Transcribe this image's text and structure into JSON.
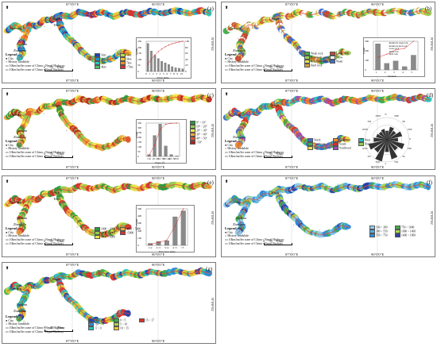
{
  "coords": {
    "lon1": "87°0'0\"E",
    "lon2": "90°0'0\"E",
    "lat": "N\"0'0°82"
  },
  "cities": [
    "Lhasa",
    "Shigatse",
    "Gyirong",
    "Zhangmu",
    "Tingri",
    "Nyalam",
    "Tibet",
    "Lhatse",
    "Nyemo",
    "Quxu",
    "Chuhur"
  ],
  "legend": {
    "title": "Legend",
    "city": "City",
    "history": "History landslide",
    "hwy": "10km buffer zone of China - Nepal Highway",
    "rwy": "10km buffer zone of China - Nepal Railway"
  },
  "scale": {
    "zero": "0",
    "mid": "35",
    "end": "70km"
  },
  "panels": [
    {
      "label": "(a)",
      "classes": [
        "1km",
        "2km",
        "3km",
        "4km",
        "5km",
        "6km",
        "7km",
        ">7km"
      ],
      "colors": [
        "#1f3fb5",
        "#1e8fd0",
        "#28c4c0",
        "#4cc46b",
        "#b7d94c",
        "#f0c730",
        "#f08a2a",
        "#d92f2f"
      ]
    },
    {
      "label": "(b)",
      "classes": [
        "Weak rock",
        "Relatively weak rock",
        "Relatively hard rock",
        "Hard rock",
        "Loose rock",
        "Snow",
        "Water"
      ],
      "colors": [
        "#3fae4a",
        "#9ad05a",
        "#e6e24e",
        "#d8a53a",
        "#c64a2f",
        "#ffffff",
        "#3a6fd0"
      ]
    },
    {
      "label": "(c)",
      "classes": [
        "0° ~ 10°",
        "10° ~ 20°",
        "20° ~ 30°",
        "30° ~ 40°",
        "40° ~ 50°",
        ">50°"
      ],
      "colors": [
        "#2b9a3f",
        "#8fcf4f",
        "#f0e64a",
        "#f0a53a",
        "#e0582b",
        "#b32020"
      ]
    },
    {
      "label": "(d)",
      "classes": [
        "North",
        "Northeast",
        "East",
        "Southeast",
        "South",
        "Southwest",
        "West",
        "Northwest"
      ],
      "colors": [
        "#3a6fd0",
        "#3fae4a",
        "#e6e24e",
        "#f08a2a",
        "#d92f2f",
        "#9b4fb5",
        "#28c4c0",
        "#8fcf4f"
      ]
    },
    {
      "label": "(e)",
      "classes": [
        "1000 ~ 2000",
        "2000 ~ 3000",
        "3000 ~ 4000",
        "4000 ~ 5000",
        ">5000"
      ],
      "colors": [
        "#2b9a3f",
        "#8fcf4f",
        "#e6e24e",
        "#f0a53a",
        "#d92f2f"
      ]
    },
    {
      "label": "(f)",
      "classes": [
        "160 ~ 380",
        "380 ~ 550",
        "550 ~ 750",
        "750 ~ 1000",
        "1000 ~ 1400",
        "1400 ~ 1869"
      ],
      "colors": [
        "#8fd0f0",
        "#4fb0e6",
        "#2f8ad8",
        "#3fae4a",
        "#a6d64a",
        "#2a3fa8"
      ]
    },
    {
      "label": "(g)",
      "classes": [
        "-15 ~ -10",
        "-10 ~ -5",
        "-5 ~ 0",
        "0 ~ 5",
        "5 ~ 10",
        "10 ~ 15",
        "15 ~ 17"
      ],
      "colors": [
        "#2a3fa8",
        "#2f8ad8",
        "#28c4c0",
        "#3fae4a",
        "#a6d64a",
        "#f0c730",
        "#d92f2f"
      ]
    }
  ],
  "charts": {
    "a": {
      "xlabel": "Fault (km)",
      "ylabel": "Count",
      "ylabel2": "Cumulative percentage (%)",
      "xticks": [
        "0",
        "1",
        "2",
        "3",
        "4",
        "5",
        "6",
        "7",
        "8",
        "9",
        "10"
      ],
      "yticks": [
        "0",
        "50",
        "100",
        "150",
        "200",
        "250"
      ],
      "y2ticks": [
        "0",
        "20",
        "40",
        "60",
        "80",
        "100"
      ],
      "values": [
        260,
        190,
        150,
        120,
        95,
        80,
        65,
        45,
        35,
        30,
        25
      ],
      "ylim": [
        0,
        280
      ]
    },
    "b": {
      "xlabel": "Stratum",
      "ylabel": "Count",
      "ylabel2": "Cumulative percentage (%)",
      "xticks": [
        "1",
        "2",
        "3",
        "4",
        "5"
      ],
      "yticks": [
        "0",
        "100",
        "200",
        "300"
      ],
      "values": [
        320,
        80,
        110,
        40,
        180
      ],
      "ylim": [
        0,
        350
      ],
      "legend": [
        "Relatively weak rock",
        "Relatively hard rock",
        "Loose rock",
        "Weak rock",
        "Hard rock"
      ]
    },
    "c": {
      "xlabel": "Slope (°)",
      "ylabel": "Count",
      "ylabel2": "Cumulative percentage (%)",
      "xticks": [
        "<10",
        "10~20",
        "20~30",
        "30~40",
        "40~50",
        ">50"
      ],
      "yticks": [
        "0",
        "50",
        "100",
        "150",
        "200",
        "250",
        "300",
        "350"
      ],
      "values": [
        20,
        220,
        340,
        110,
        20,
        5
      ],
      "ylim": [
        0,
        350
      ]
    },
    "d": {
      "labels": [
        "N",
        "NNE",
        "NE",
        "ENE",
        "E",
        "ESE",
        "SE",
        "SSE",
        "S",
        "SSW",
        "SW",
        "WSW",
        "W",
        "WNW",
        "NW",
        "NNW"
      ],
      "values": [
        0.4,
        0.6,
        0.5,
        0.7,
        0.5,
        0.8,
        0.6,
        0.9,
        0.55,
        1.0,
        0.7,
        0.85,
        0.6,
        0.5,
        0.45,
        0.5
      ]
    },
    "e": {
      "xlabel": "Elevation (km)",
      "ylabel": "Count",
      "ylabel2": "Cumulative percentage (%)",
      "xticks": [
        "1~2",
        "2~3",
        "3~4",
        "4~5",
        ">5"
      ],
      "yticks": [
        "0",
        "100",
        "200",
        "300",
        "400",
        "500"
      ],
      "values": [
        30,
        60,
        70,
        430,
        520
      ],
      "ylim": [
        0,
        550
      ]
    }
  }
}
